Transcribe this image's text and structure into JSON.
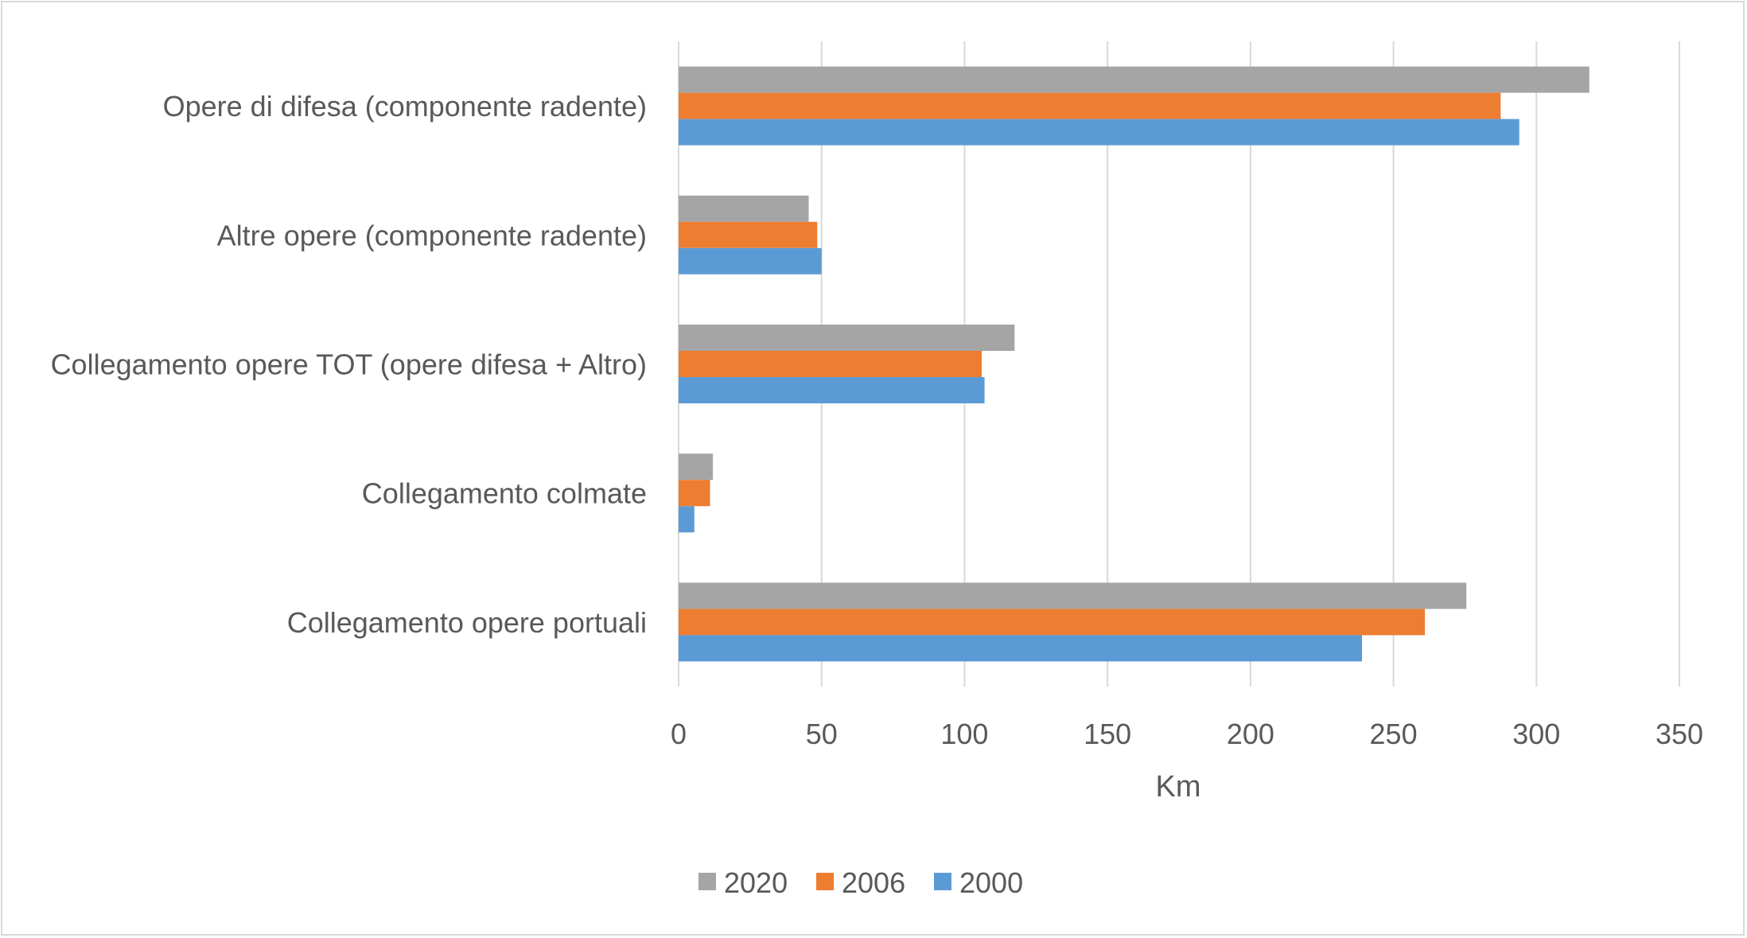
{
  "chart_data": {
    "type": "bar",
    "orientation": "horizontal",
    "categories": [
      "Opere di difesa (componente radente)",
      "Altre opere (componente radente)",
      "Collegamento opere TOT (opere difesa + Altro)",
      "Collegamento colmate",
      "Collegamento opere portuali"
    ],
    "series": [
      {
        "name": "2020",
        "color": "#a5a5a5",
        "values": [
          318.5,
          45.5,
          117.5,
          12.0,
          275.5
        ]
      },
      {
        "name": "2006",
        "color": "#ed7d31",
        "values": [
          287.5,
          48.5,
          106.0,
          11.0,
          261.0
        ]
      },
      {
        "name": "2000",
        "color": "#5b9bd5",
        "values": [
          294.0,
          50.0,
          107.0,
          5.5,
          239.0
        ]
      }
    ],
    "xlabel": "Km",
    "ylabel": "",
    "title": "",
    "xlim": [
      0,
      350
    ],
    "xticks": [
      0,
      50,
      100,
      150,
      200,
      250,
      300,
      350
    ],
    "grid": "vertical",
    "gridline_color": "#d9d9d9",
    "legend_position": "bottom"
  }
}
